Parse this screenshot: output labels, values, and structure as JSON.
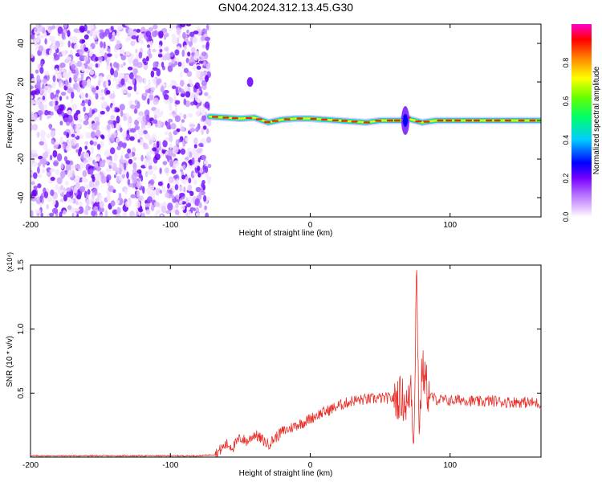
{
  "figure_title": "GN04.2024.312.13.45.G30",
  "chart_data": [
    {
      "type": "heatmap",
      "xlabel": "Height of straight line (km)",
      "ylabel": "Frequency (Hz)",
      "xlim": [
        -200,
        165
      ],
      "ylim": [
        -50,
        50
      ],
      "x_ticks": [
        -200,
        -100,
        0,
        100
      ],
      "x_tick_labels": [
        "-200",
        "-100",
        "0",
        "100"
      ],
      "y_ticks": [
        -40,
        -20,
        0,
        20,
        40
      ],
      "y_tick_labels": [
        "-40",
        "-20",
        "0",
        "20",
        "40"
      ],
      "colorbar": {
        "label": "Normalized spectral amplitude",
        "range": [
          0,
          1
        ],
        "ticks": [
          0.0,
          0.2,
          0.4,
          0.6,
          0.8
        ],
        "tick_labels": [
          "0.0",
          "0.2",
          "0.4",
          "0.6",
          "0.8"
        ],
        "colors": [
          "#ffffff",
          "#cc88ff",
          "#7700ff",
          "#0000ff",
          "#00ffff",
          "#00ff00",
          "#ffff00",
          "#ff8800",
          "#ff0000",
          "#ff00ff"
        ]
      },
      "noise_region": {
        "x": [
          -200,
          -72
        ],
        "y": [
          -50,
          50
        ],
        "level": "low (0.0-0.2)"
      },
      "signal_track": {
        "x": [
          -72,
          -60,
          -50,
          -40,
          -30,
          -20,
          -10,
          0,
          10,
          20,
          30,
          40,
          50,
          60,
          65,
          68,
          72,
          80,
          90,
          100,
          110,
          120,
          130,
          140,
          150,
          165
        ],
        "frequency": [
          2,
          1.5,
          1,
          1.5,
          -1,
          0.5,
          1,
          1,
          0.5,
          0,
          -0.5,
          -1,
          0,
          0,
          0,
          2,
          0.5,
          -1,
          0,
          0,
          0,
          0,
          0,
          0,
          0,
          0
        ],
        "peak_amplitude": 0.9
      },
      "blob": {
        "x": -43,
        "frequency": 20,
        "amplitude": 0.2
      },
      "grid": false
    },
    {
      "type": "line",
      "xlabel": "Height of straight line (km)",
      "ylabel": "SNR (10 * v/v)",
      "y_exponent": "(x10⁴)",
      "xlim": [
        -200,
        165
      ],
      "ylim": [
        0,
        1.5
      ],
      "x_ticks": [
        -200,
        -100,
        0,
        100
      ],
      "x_tick_labels": [
        "-200",
        "-100",
        "0",
        "100"
      ],
      "y_ticks": [
        0.5,
        1.0,
        1.5
      ],
      "y_tick_labels": [
        "0.5",
        "1.0",
        "1.5"
      ],
      "color": "#e8302a",
      "series": [
        {
          "x": [
            -200,
            -150,
            -100,
            -80,
            -68,
            -60,
            -55,
            -50,
            -45,
            -40,
            -35,
            -30,
            -25,
            -20,
            -15,
            -10,
            -5,
            0,
            5,
            10,
            20,
            30,
            40,
            50,
            60,
            65,
            70,
            72,
            74,
            76,
            78,
            80,
            85,
            90,
            100,
            110,
            120,
            130,
            140,
            150,
            165
          ],
          "values": [
            0.01,
            0.01,
            0.01,
            0.01,
            0.02,
            0.1,
            0.08,
            0.15,
            0.12,
            0.18,
            0.14,
            0.1,
            0.15,
            0.2,
            0.22,
            0.25,
            0.27,
            0.3,
            0.33,
            0.35,
            0.4,
            0.44,
            0.45,
            0.46,
            0.46,
            0.47,
            0.4,
            0.6,
            0.1,
            1.48,
            0.2,
            0.7,
            0.48,
            0.45,
            0.44,
            0.45,
            0.43,
            0.44,
            0.43,
            0.43,
            0.42
          ]
        }
      ],
      "grid": false
    }
  ]
}
